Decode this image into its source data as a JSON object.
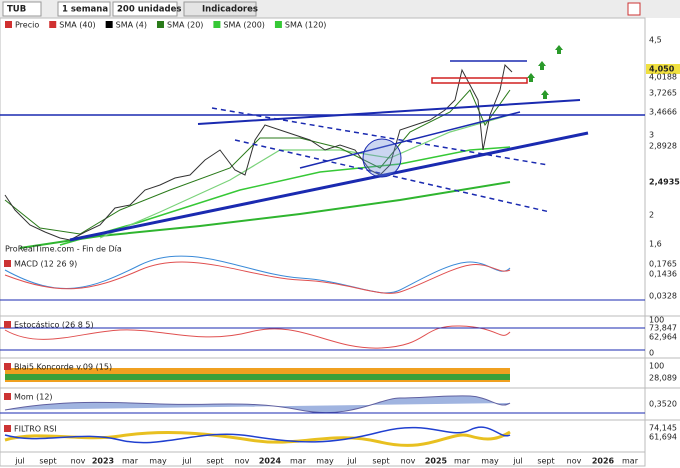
{
  "toolbar": {
    "symbol": "TUB",
    "period": "1 semana",
    "units": "200 unidades",
    "indicators": "Indicadores"
  },
  "main": {
    "legend": [
      {
        "name": "Precio",
        "color": "#d03030"
      },
      {
        "name": "SMA (40)",
        "color": "#d03030"
      },
      {
        "name": "SMA (4)",
        "color": "#000000"
      },
      {
        "name": "SMA (20)",
        "color": "#2a7a1a"
      },
      {
        "name": "SMA (200)",
        "color": "#36c836"
      },
      {
        "name": "SMA (120)",
        "color": "#36c836"
      }
    ],
    "axis": [
      "4,5",
      "4,050",
      "4,0188",
      "3,7265",
      "3,4666",
      "3",
      "2,8928",
      "2,4935",
      "2",
      "1,6"
    ],
    "watermark": "ProRealTime.com - Fin de Día"
  },
  "panels": [
    {
      "title": "MACD (12 26 9)",
      "axis": [
        "0,1765",
        "0,1436",
        "0,0328"
      ]
    },
    {
      "title": "Estocástico (26 8 5)",
      "axis": [
        "100",
        "73,847",
        "62,964",
        "0"
      ]
    },
    {
      "title": "Blai5 Koncorde v.09 (15)",
      "axis": [
        "100",
        "28,089"
      ]
    },
    {
      "title": "Mom (12)",
      "axis": [
        "0,3520"
      ]
    },
    {
      "title": "FILTRO RSI",
      "axis": [
        "74,145",
        "61,694"
      ]
    }
  ],
  "xaxis": [
    "jul",
    "sept",
    "nov",
    "2023",
    "mar",
    "may",
    "jul",
    "sept",
    "nov",
    "2024",
    "mar",
    "may",
    "jul",
    "sept",
    "nov",
    "2025",
    "mar",
    "may",
    "jul",
    "sept",
    "nov",
    "2026",
    "mar"
  ]
}
